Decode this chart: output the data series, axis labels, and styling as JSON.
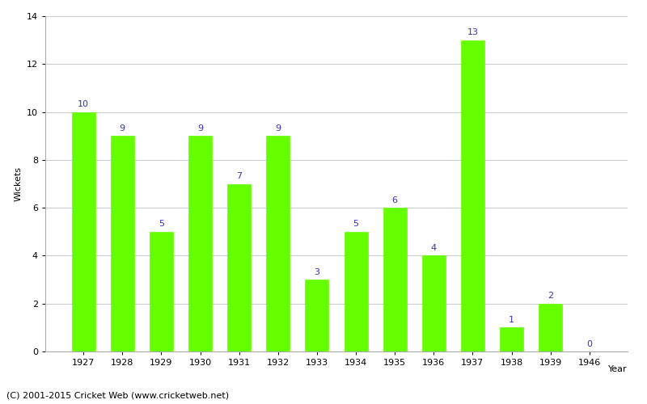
{
  "years": [
    "1927",
    "1928",
    "1929",
    "1930",
    "1931",
    "1932",
    "1933",
    "1934",
    "1935",
    "1936",
    "1937",
    "1938",
    "1939",
    "1946"
  ],
  "wickets": [
    10,
    9,
    5,
    9,
    7,
    9,
    3,
    5,
    6,
    4,
    13,
    1,
    2,
    0
  ],
  "bar_color": "#66ff00",
  "bar_edge_color": "#66ff00",
  "xlabel": "Year",
  "ylabel": "Wickets",
  "ylim": [
    0,
    14
  ],
  "yticks": [
    0,
    2,
    4,
    6,
    8,
    10,
    12,
    14
  ],
  "label_color": "#3333aa",
  "label_fontsize": 8,
  "axis_fontsize": 8,
  "footer_text": "(C) 2001-2015 Cricket Web (www.cricketweb.net)",
  "footer_fontsize": 8,
  "background_color": "#ffffff",
  "grid_color": "#cccccc"
}
